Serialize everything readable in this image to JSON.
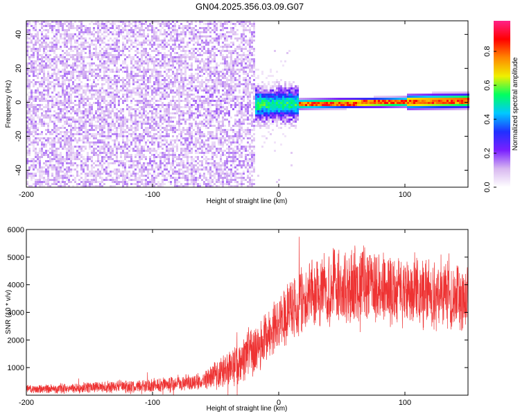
{
  "title": "GN04.2025.356.03.09.G07",
  "chart_data": [
    {
      "type": "heatmap",
      "xlabel": "Height of straight line (km)",
      "ylabel": "Frequency (Hz)",
      "xlim": [
        -200,
        150
      ],
      "ylim": [
        -50,
        48
      ],
      "xticks": [
        -200,
        -100,
        0,
        100
      ],
      "xtick_labels": [
        "-200",
        "-100",
        "0",
        "100"
      ],
      "yticks": [
        -40,
        -20,
        0,
        20,
        40
      ],
      "ytick_labels": [
        "-40",
        "-20",
        "0",
        "20",
        "40"
      ],
      "colorbar": {
        "label": "Normalized spectral amplitude",
        "range": [
          0,
          0.98
        ],
        "ticks": [
          0,
          0.2,
          0.4,
          0.6,
          0.8
        ],
        "tick_labels": [
          "0.0",
          "0.2",
          "0.4",
          "0.6",
          "0.8"
        ],
        "colormap": [
          "#ffffff",
          "#d8b8f0",
          "#7a20ff",
          "#2030ff",
          "#00c8ff",
          "#00ff60",
          "#f0f000",
          "#ff8800",
          "#ff0000",
          "#ff2288"
        ]
      },
      "features": {
        "noise_region_x": [
          -200,
          -20
        ],
        "noise_amplitude": 0.12,
        "ridge_start_x": -20,
        "ridge_frequency_at_start": -1,
        "ridge_frequency_at_end": 1.5,
        "ridge_peak_amplitude": 0.9
      }
    },
    {
      "type": "line",
      "xlabel": "Height of straight line (km)",
      "ylabel": "SNR (10 * v/v)",
      "xlim": [
        -200,
        150
      ],
      "ylim": [
        0,
        6000
      ],
      "xticks": [
        -200,
        -100,
        0,
        100
      ],
      "xtick_labels": [
        "-200",
        "-100",
        "0",
        "100"
      ],
      "yticks": [
        1000,
        2000,
        3000,
        4000,
        5000,
        6000
      ],
      "ytick_labels": [
        "1000",
        "2000",
        "3000",
        "4000",
        "5000",
        "6000"
      ],
      "color": "#ee3333",
      "envelope": {
        "x": [
          -200,
          -150,
          -100,
          -60,
          -45,
          -30,
          -20,
          -10,
          0,
          10,
          20,
          30,
          50,
          80,
          100,
          120,
          150
        ],
        "mean": [
          200,
          280,
          350,
          500,
          800,
          1200,
          1600,
          2200,
          2600,
          3100,
          3600,
          3800,
          3900,
          4000,
          3850,
          3600,
          3500
        ],
        "spread": [
          150,
          200,
          250,
          300,
          600,
          800,
          900,
          1000,
          1000,
          1100,
          1200,
          1200,
          1300,
          1300,
          1200,
          1200,
          1200
        ]
      }
    }
  ]
}
